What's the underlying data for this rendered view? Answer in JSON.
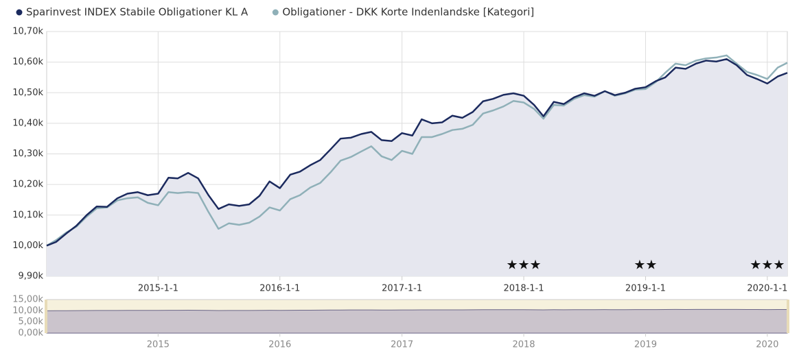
{
  "chart_data": {
    "type": "line",
    "x": [
      "2014-2-1",
      "2014-3-1",
      "2014-4-1",
      "2014-5-1",
      "2014-6-1",
      "2014-7-1",
      "2014-8-1",
      "2014-9-1",
      "2014-10-1",
      "2014-11-1",
      "2014-12-1",
      "2015-1-1",
      "2015-2-1",
      "2015-3-1",
      "2015-4-1",
      "2015-5-1",
      "2015-6-1",
      "2015-7-1",
      "2015-8-1",
      "2015-9-1",
      "2015-10-1",
      "2015-11-1",
      "2015-12-1",
      "2016-1-1",
      "2016-2-1",
      "2016-3-1",
      "2016-4-1",
      "2016-5-1",
      "2016-6-1",
      "2016-7-1",
      "2016-8-1",
      "2016-9-1",
      "2016-10-1",
      "2016-11-1",
      "2016-12-1",
      "2017-1-1",
      "2017-2-1",
      "2017-3-1",
      "2017-4-1",
      "2017-5-1",
      "2017-6-1",
      "2017-7-1",
      "2017-8-1",
      "2017-9-1",
      "2017-10-1",
      "2017-11-1",
      "2017-12-1",
      "2018-1-1",
      "2018-2-1",
      "2018-3-1",
      "2018-4-1",
      "2018-5-1",
      "2018-6-1",
      "2018-7-1",
      "2018-8-1",
      "2018-9-1",
      "2018-10-1",
      "2018-11-1",
      "2018-12-1",
      "2019-1-1",
      "2019-2-1",
      "2019-3-1",
      "2019-4-1",
      "2019-5-1",
      "2019-6-1",
      "2019-7-1",
      "2019-8-1",
      "2019-9-1",
      "2019-10-1",
      "2019-11-1",
      "2019-12-1",
      "2020-1-1",
      "2020-2-1",
      "2020-3-1"
    ],
    "series": [
      {
        "name": "Sparinvest INDEX Stabile Obligationer KL A",
        "color": "#1b2a5e",
        "values": [
          10000,
          10012,
          10040,
          10065,
          10100,
          10128,
          10127,
          10155,
          10170,
          10175,
          10165,
          10170,
          10222,
          10220,
          10238,
          10220,
          10165,
          10120,
          10135,
          10130,
          10135,
          10163,
          10210,
          10188,
          10232,
          10242,
          10263,
          10280,
          10315,
          10350,
          10353,
          10365,
          10372,
          10345,
          10342,
          10368,
          10360,
          10413,
          10400,
          10403,
          10425,
          10418,
          10437,
          10472,
          10480,
          10493,
          10498,
          10490,
          10460,
          10423,
          10470,
          10463,
          10485,
          10498,
          10490,
          10505,
          10492,
          10500,
          10513,
          10518,
          10538,
          10550,
          10582,
          10578,
          10595,
          10605,
          10602,
          10610,
          10590,
          10558,
          10545,
          10530,
          10553,
          10565
        ]
      },
      {
        "name": "Obligationer - DKK Korte Indenlandske [Kategori]",
        "color": "#8fb0b8",
        "values": [
          10000,
          10018,
          10043,
          10062,
          10095,
          10122,
          10125,
          10148,
          10155,
          10158,
          10140,
          10132,
          10175,
          10172,
          10175,
          10172,
          10110,
          10055,
          10073,
          10068,
          10075,
          10095,
          10125,
          10115,
          10152,
          10165,
          10190,
          10205,
          10240,
          10278,
          10290,
          10308,
          10325,
          10292,
          10280,
          10310,
          10300,
          10355,
          10355,
          10365,
          10378,
          10382,
          10395,
          10432,
          10442,
          10455,
          10473,
          10468,
          10447,
          10415,
          10460,
          10458,
          10480,
          10492,
          10487,
          10505,
          10490,
          10498,
          10510,
          10512,
          10535,
          10565,
          10595,
          10590,
          10605,
          10612,
          10615,
          10622,
          10595,
          10568,
          10558,
          10545,
          10582,
          10598
        ]
      }
    ],
    "xlim": [
      "2014-2-1",
      "2020-3-1"
    ],
    "xticks": [
      "2015-1-1",
      "2016-1-1",
      "2017-1-1",
      "2018-1-1",
      "2019-1-1",
      "2020-1-1"
    ],
    "ylim": [
      9900,
      10700
    ],
    "yticks": [
      {
        "value": 9900,
        "label": "9,90k"
      },
      {
        "value": 10000,
        "label": "10,00k"
      },
      {
        "value": 10100,
        "label": "10,10k"
      },
      {
        "value": 10200,
        "label": "10,20k"
      },
      {
        "value": 10300,
        "label": "10,30k"
      },
      {
        "value": 10400,
        "label": "10,40k"
      },
      {
        "value": 10500,
        "label": "10,50k"
      },
      {
        "value": 10600,
        "label": "10,60k"
      },
      {
        "value": 10700,
        "label": "10,70k"
      }
    ],
    "grid": true,
    "annotations": [
      {
        "x": "2018-1-1",
        "text": "★★★"
      },
      {
        "x": "2019-1-1",
        "text": "★★"
      },
      {
        "x": "2020-1-1",
        "text": "★★★"
      }
    ],
    "navigator": {
      "ylim": [
        0,
        15000
      ],
      "yticks": [
        {
          "value": 0,
          "label": "0,00k"
        },
        {
          "value": 5000,
          "label": "5,00k"
        },
        {
          "value": 10000,
          "label": "10,00k"
        },
        {
          "value": 15000,
          "label": "15,00k"
        }
      ],
      "xticks": [
        "2015",
        "2016",
        "2017",
        "2018",
        "2019",
        "2020"
      ]
    }
  }
}
